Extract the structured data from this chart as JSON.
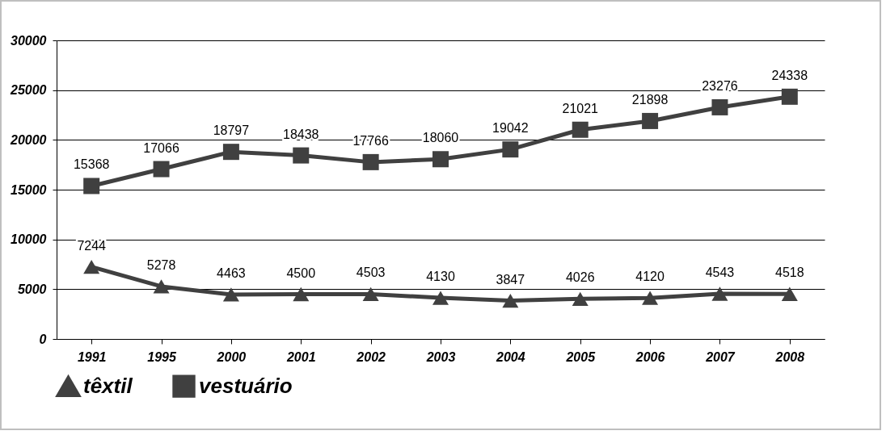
{
  "chart_data": {
    "type": "line",
    "categories": [
      "1991",
      "1995",
      "2000",
      "2001",
      "2002",
      "2003",
      "2004",
      "2005",
      "2006",
      "2007",
      "2008"
    ],
    "series": [
      {
        "name": "têxtil",
        "color": "#404040",
        "marker": "triangle",
        "values": [
          7244,
          5278,
          4463,
          4500,
          4503,
          4130,
          3847,
          4026,
          4120,
          4543,
          4518
        ]
      },
      {
        "name": "vestuário",
        "color": "#404040",
        "marker": "square",
        "values": [
          15368,
          17066,
          18797,
          18438,
          17766,
          18060,
          19042,
          21021,
          21898,
          23276,
          24338
        ]
      }
    ],
    "ylim": [
      0,
      30000
    ],
    "yticks": [
      0,
      {
        "value": 5000,
        "label": "5000"
      },
      {
        "value": 10000,
        "label": "10000"
      },
      {
        "value": 15000,
        "label": "15000"
      },
      {
        "value": 20000,
        "label": "20000"
      },
      {
        "value": 25000,
        "label": "25000"
      },
      {
        "value": 30000,
        "label": "30000"
      }
    ],
    "grid": "y",
    "legend": "bottom",
    "data_labels": true
  }
}
